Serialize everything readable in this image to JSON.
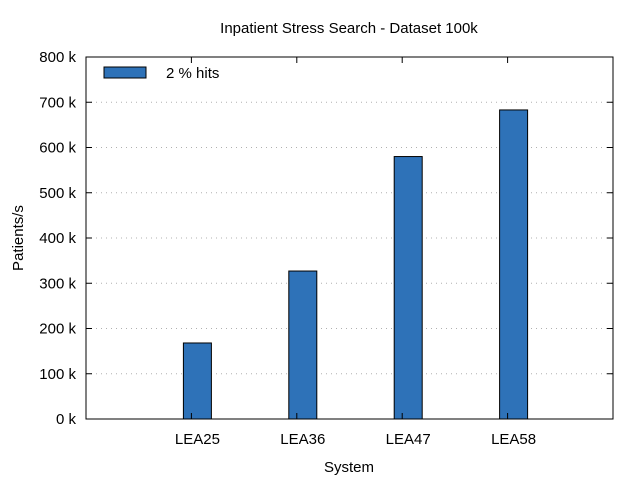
{
  "chart_data": {
    "type": "bar",
    "title": "Inpatient Stress Search - Dataset 100k",
    "xlabel": "System",
    "ylabel": "Patients/s",
    "categories": [
      "LEA25",
      "LEA36",
      "LEA47",
      "LEA58"
    ],
    "series": [
      {
        "name": "2 % hits",
        "values": [
          168000,
          327000,
          580000,
          683000
        ],
        "color": "#2e72b8"
      }
    ],
    "ylim": [
      0,
      800000
    ],
    "yticks": [
      0,
      100000,
      200000,
      300000,
      400000,
      500000,
      600000,
      700000,
      800000
    ],
    "ytick_labels": [
      "0 k",
      "100 k",
      "200 k",
      "300 k",
      "400 k",
      "500 k",
      "600 k",
      "700 k",
      "800 k"
    ],
    "grid": true,
    "legend_position": "top-left"
  }
}
